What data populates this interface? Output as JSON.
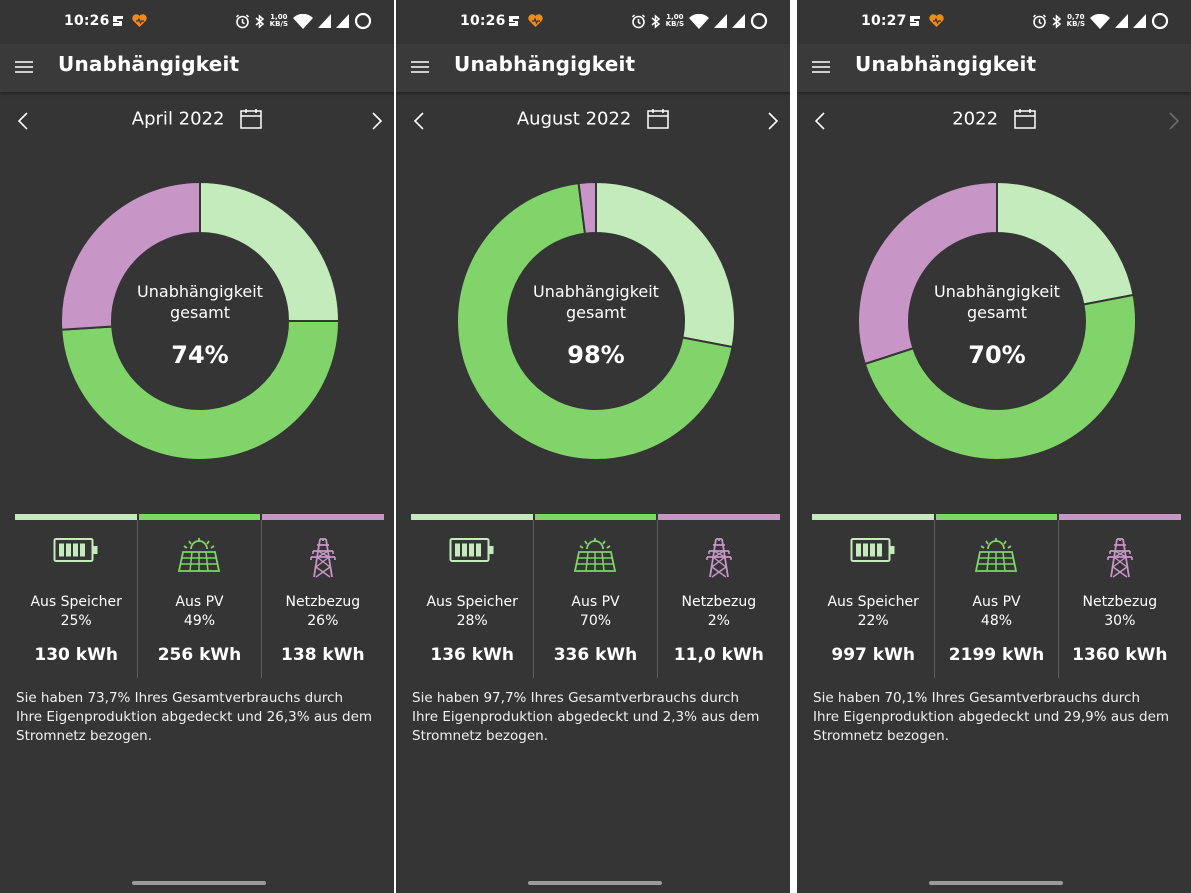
{
  "colors": {
    "storage": "#c4ebbc",
    "pv": "#80d46a",
    "grid": "#c896c6",
    "background": "#353535"
  },
  "screens": [
    {
      "time": "10:26",
      "net_speed_value": "1,00",
      "net_speed_unit": "KB/S",
      "title": "Unabhängigkeit",
      "period": "April 2022",
      "next_enabled": true,
      "donut_label_line1": "Unabhängigkeit",
      "donut_label_line2": "gesamt",
      "donut_value": "74%",
      "segments": {
        "storage": 25,
        "pv": 49,
        "grid": 26
      },
      "storage_label": "Aus Speicher",
      "storage_pct": "25%",
      "storage_kwh": "130 kWh",
      "pv_label": "Aus PV",
      "pv_pct": "49%",
      "pv_kwh": "256 kWh",
      "grid_label": "Netzbezug",
      "grid_pct": "26%",
      "grid_kwh": "138 kWh",
      "summary_line1": "Sie haben 73,7% Ihres Gesamtverbrauchs durch",
      "summary_line2": "Ihre Eigenproduktion abgedeckt und 26,3% aus dem",
      "summary_line3": "Stromnetz bezogen."
    },
    {
      "time": "10:26",
      "net_speed_value": "1,00",
      "net_speed_unit": "KB/S",
      "title": "Unabhängigkeit",
      "period": "August 2022",
      "next_enabled": true,
      "donut_label_line1": "Unabhängigkeit",
      "donut_label_line2": "gesamt",
      "donut_value": "98%",
      "segments": {
        "storage": 28,
        "pv": 70,
        "grid": 2
      },
      "storage_label": "Aus Speicher",
      "storage_pct": "28%",
      "storage_kwh": "136 kWh",
      "pv_label": "Aus PV",
      "pv_pct": "70%",
      "pv_kwh": "336 kWh",
      "grid_label": "Netzbezug",
      "grid_pct": "2%",
      "grid_kwh": "11,0 kWh",
      "summary_line1": "Sie haben 97,7% Ihres Gesamtverbrauchs durch",
      "summary_line2": "Ihre Eigenproduktion abgedeckt und 2,3% aus dem",
      "summary_line3": "Stromnetz bezogen."
    },
    {
      "time": "10:27",
      "net_speed_value": "0,70",
      "net_speed_unit": "KB/S",
      "title": "Unabhängigkeit",
      "period": "2022",
      "next_enabled": false,
      "donut_label_line1": "Unabhängigkeit",
      "donut_label_line2": "gesamt",
      "donut_value": "70%",
      "segments": {
        "storage": 22,
        "pv": 48,
        "grid": 30
      },
      "storage_label": "Aus Speicher",
      "storage_pct": "22%",
      "storage_kwh": "997 kWh",
      "pv_label": "Aus PV",
      "pv_pct": "48%",
      "pv_kwh": "2199 kWh",
      "grid_label": "Netzbezug",
      "grid_pct": "30%",
      "grid_kwh": "1360 kWh",
      "summary_line1": "Sie haben 70,1% Ihres Gesamtverbrauchs durch",
      "summary_line2": "Ihre Eigenproduktion abgedeckt und 29,9% aus dem",
      "summary_line3": "Stromnetz bezogen."
    }
  ]
}
